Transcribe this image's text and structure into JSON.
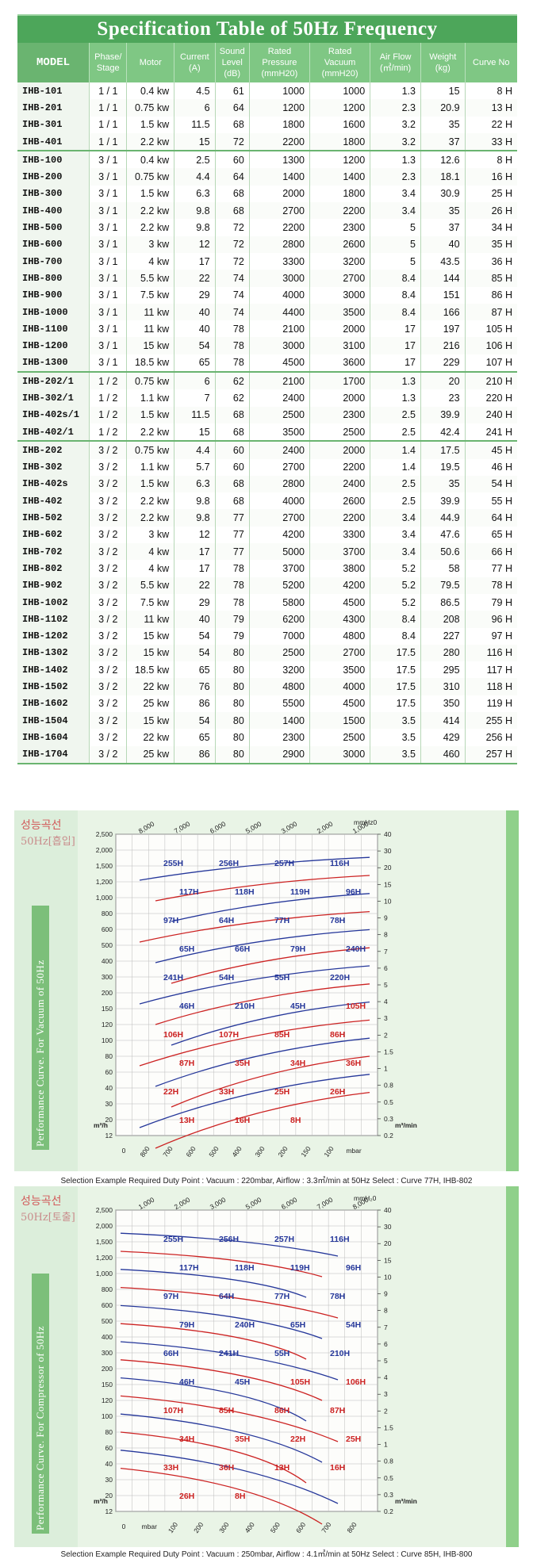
{
  "spec": {
    "title": "Specification Table of 50Hz Frequency",
    "headers": [
      "MODEL",
      "Phase/ Stage",
      "Motor",
      "Current (A)",
      "Sound Level (dB)",
      "Rated Pressure (mmH20)",
      "Rated Vacuum (mmH20)",
      "Air Flow (㎥/min)",
      "Weight (kg)",
      "Curve No"
    ],
    "rows": [
      [
        "IHB-101",
        "1 / 1",
        "0.4 kw",
        "4.5",
        "61",
        "1000",
        "1000",
        "1.3",
        "15",
        "8 H"
      ],
      [
        "IHB-201",
        "1 / 1",
        "0.75 kw",
        "6",
        "64",
        "1200",
        "1200",
        "2.3",
        "20.9",
        "13 H"
      ],
      [
        "IHB-301",
        "1 / 1",
        "1.5 kw",
        "11.5",
        "68",
        "1800",
        "1600",
        "3.2",
        "35",
        "22 H"
      ],
      [
        "IHB-401",
        "1 / 1",
        "2.2 kw",
        "15",
        "72",
        "2200",
        "1800",
        "3.2",
        "37",
        "33 H"
      ],
      [
        "IHB-100",
        "3 / 1",
        "0.4 kw",
        "2.5",
        "60",
        "1300",
        "1200",
        "1.3",
        "12.6",
        "8 H"
      ],
      [
        "IHB-200",
        "3 / 1",
        "0.75 kw",
        "4.4",
        "64",
        "1400",
        "1400",
        "2.3",
        "18.1",
        "16 H"
      ],
      [
        "IHB-300",
        "3 / 1",
        "1.5 kw",
        "6.3",
        "68",
        "2000",
        "1800",
        "3.4",
        "30.9",
        "25 H"
      ],
      [
        "IHB-400",
        "3 / 1",
        "2.2 kw",
        "9.8",
        "68",
        "2700",
        "2200",
        "3.4",
        "35",
        "26 H"
      ],
      [
        "IHB-500",
        "3 / 1",
        "2.2 kw",
        "9.8",
        "72",
        "2200",
        "2300",
        "5",
        "37",
        "34 H"
      ],
      [
        "IHB-600",
        "3 / 1",
        "3 kw",
        "12",
        "72",
        "2800",
        "2600",
        "5",
        "40",
        "35 H"
      ],
      [
        "IHB-700",
        "3 / 1",
        "4 kw",
        "17",
        "72",
        "3300",
        "3200",
        "5",
        "43.5",
        "36 H"
      ],
      [
        "IHB-800",
        "3 / 1",
        "5.5 kw",
        "22",
        "74",
        "3000",
        "2700",
        "8.4",
        "144",
        "85 H"
      ],
      [
        "IHB-900",
        "3 / 1",
        "7.5 kw",
        "29",
        "74",
        "4000",
        "3000",
        "8.4",
        "151",
        "86 H"
      ],
      [
        "IHB-1000",
        "3 / 1",
        "11 kw",
        "40",
        "74",
        "4400",
        "3500",
        "8.4",
        "166",
        "87 H"
      ],
      [
        "IHB-1100",
        "3 / 1",
        "11 kw",
        "40",
        "78",
        "2100",
        "2000",
        "17",
        "197",
        "105 H"
      ],
      [
        "IHB-1200",
        "3 / 1",
        "15 kw",
        "54",
        "78",
        "3000",
        "3100",
        "17",
        "216",
        "106 H"
      ],
      [
        "IHB-1300",
        "3 / 1",
        "18.5 kw",
        "65",
        "78",
        "4500",
        "3600",
        "17",
        "229",
        "107 H"
      ],
      [
        "IHB-202/1",
        "1 / 2",
        "0.75 kw",
        "6",
        "62",
        "2100",
        "1700",
        "1.3",
        "20",
        "210 H"
      ],
      [
        "IHB-302/1",
        "1 / 2",
        "1.1 kw",
        "7",
        "62",
        "2400",
        "2000",
        "1.3",
        "23",
        "220 H"
      ],
      [
        "IHB-402s/1",
        "1 / 2",
        "1.5 kw",
        "11.5",
        "68",
        "2500",
        "2300",
        "2.5",
        "39.9",
        "240 H"
      ],
      [
        "IHB-402/1",
        "1 / 2",
        "2.2 kw",
        "15",
        "68",
        "3500",
        "2500",
        "2.5",
        "42.4",
        "241 H"
      ],
      [
        "IHB-202",
        "3 / 2",
        "0.75 kw",
        "4.4",
        "60",
        "2400",
        "2000",
        "1.4",
        "17.5",
        "45 H"
      ],
      [
        "IHB-302",
        "3 / 2",
        "1.1 kw",
        "5.7",
        "60",
        "2700",
        "2200",
        "1.4",
        "19.5",
        "46 H"
      ],
      [
        "IHB-402s",
        "3 / 2",
        "1.5 kw",
        "6.3",
        "68",
        "2800",
        "2400",
        "2.5",
        "35",
        "54 H"
      ],
      [
        "IHB-402",
        "3 / 2",
        "2.2 kw",
        "9.8",
        "68",
        "4000",
        "2600",
        "2.5",
        "39.9",
        "55 H"
      ],
      [
        "IHB-502",
        "3 / 2",
        "2.2 kw",
        "9.8",
        "77",
        "2700",
        "2200",
        "3.4",
        "44.9",
        "64 H"
      ],
      [
        "IHB-602",
        "3 / 2",
        "3 kw",
        "12",
        "77",
        "4200",
        "3300",
        "3.4",
        "47.6",
        "65 H"
      ],
      [
        "IHB-702",
        "3 / 2",
        "4 kw",
        "17",
        "77",
        "5000",
        "3700",
        "3.4",
        "50.6",
        "66 H"
      ],
      [
        "IHB-802",
        "3 / 2",
        "4 kw",
        "17",
        "78",
        "3700",
        "3800",
        "5.2",
        "58",
        "77 H"
      ],
      [
        "IHB-902",
        "3 / 2",
        "5.5 kw",
        "22",
        "78",
        "5200",
        "4200",
        "5.2",
        "79.5",
        "78 H"
      ],
      [
        "IHB-1002",
        "3 / 2",
        "7.5 kw",
        "29",
        "78",
        "5800",
        "4500",
        "5.2",
        "86.5",
        "79 H"
      ],
      [
        "IHB-1102",
        "3 / 2",
        "11 kw",
        "40",
        "79",
        "6200",
        "4300",
        "8.4",
        "208",
        "96 H"
      ],
      [
        "IHB-1202",
        "3 / 2",
        "15 kw",
        "54",
        "79",
        "7000",
        "4800",
        "8.4",
        "227",
        "97 H"
      ],
      [
        "IHB-1302",
        "3 / 2",
        "15 kw",
        "54",
        "80",
        "2500",
        "2700",
        "17.5",
        "280",
        "116 H"
      ],
      [
        "IHB-1402",
        "3 / 2",
        "18.5 kw",
        "65",
        "80",
        "3200",
        "3500",
        "17.5",
        "295",
        "117 H"
      ],
      [
        "IHB-1502",
        "3 / 2",
        "22 kw",
        "76",
        "80",
        "4800",
        "4000",
        "17.5",
        "310",
        "118 H"
      ],
      [
        "IHB-1602",
        "3 / 2",
        "25 kw",
        "86",
        "80",
        "5500",
        "4500",
        "17.5",
        "350",
        "119 H"
      ],
      [
        "IHB-1504",
        "3 / 2",
        "15 kw",
        "54",
        "80",
        "1400",
        "1500",
        "3.5",
        "414",
        "255 H"
      ],
      [
        "IHB-1604",
        "3 / 2",
        "22 kw",
        "65",
        "80",
        "2300",
        "2500",
        "3.5",
        "429",
        "256 H"
      ],
      [
        "IHB-1704",
        "3 / 2",
        "25 kw",
        "86",
        "80",
        "2900",
        "3000",
        "3.5",
        "460",
        "257 H"
      ]
    ]
  },
  "vacuum_panel": {
    "badge": "성능곡선",
    "badge_sub": "50Hz[흡입]",
    "side_title": "Performance Curve. For Vacuum of 50Hz",
    "unit_top": "mmHz0",
    "unit_left": "m³/h",
    "unit_right": "m³/min",
    "unit_bottom": "mbar",
    "caption": "Selection Example Required Duty Point : Vacuum : 220mbar, Airflow : 3.3㎥/min at 50Hz Select : Curve 77H, IHB-802"
  },
  "compressor_panel": {
    "badge": "성능곡선",
    "badge_sub": "50Hz[토출]",
    "side_title": "Performance Curve. For Compressor of 50Hz",
    "unit_top": "mmH₂0",
    "unit_left": "m³/h",
    "unit_right": "m³/min",
    "unit_bottom": "mbar",
    "caption": "Selection Example Required Duty Point : Vacuum : 250mbar, Airflow : 4.1㎥/min at 50Hz Select : Curve 85H, IHB-800"
  },
  "chart_data": [
    {
      "type": "line",
      "title": "Performance Curve. For Vacuum of 50Hz",
      "left_axis_ticks": [
        "2,500",
        "2,000",
        "1,500",
        "1,200",
        "1,000",
        "800",
        "600",
        "500",
        "400",
        "300",
        "200",
        "150",
        "120",
        "100",
        "80",
        "60",
        "40",
        "30",
        "20",
        "12"
      ],
      "right_axis_ticks": [
        "40",
        "30",
        "20",
        "15",
        "10",
        "9",
        "8",
        "7",
        "6",
        "5",
        "4",
        "3",
        "2",
        "1.5",
        "1",
        "0.8",
        "0.5",
        "0.3",
        "0.2"
      ],
      "top_axis_ticks": [
        "8,000",
        "7,000",
        "6,000",
        "5,000",
        "3,000",
        "2,000",
        "1,000"
      ],
      "bottom_axis_ticks": [
        "0",
        "800",
        "700",
        "600",
        "500",
        "400",
        "300",
        "200",
        "150",
        "100",
        "mbar"
      ],
      "curve_labels_blue": [
        "255H",
        "256H",
        "257H",
        "116H",
        "117H",
        "118H",
        "119H",
        "96H",
        "97H",
        "64H",
        "77H",
        "78H",
        "65H",
        "66H",
        "79H",
        "240H",
        "241H",
        "54H",
        "55H",
        "220H",
        "46H",
        "210H",
        "45H"
      ],
      "curve_labels_red": [
        "105H",
        "106H",
        "107H",
        "85H",
        "86H",
        "87H",
        "35H",
        "34H",
        "36H",
        "22H",
        "33H",
        "25H",
        "26H",
        "13H",
        "16H",
        "8H"
      ]
    },
    {
      "type": "line",
      "title": "Performance Curve. For Compressor of 50Hz",
      "left_axis_ticks": [
        "2,500",
        "2,000",
        "1,500",
        "1,200",
        "1,000",
        "800",
        "600",
        "500",
        "400",
        "300",
        "200",
        "150",
        "120",
        "100",
        "80",
        "60",
        "40",
        "30",
        "20",
        "12"
      ],
      "right_axis_ticks": [
        "40",
        "30",
        "20",
        "15",
        "10",
        "9",
        "8",
        "7",
        "6",
        "5",
        "4",
        "3",
        "2",
        "1.5",
        "1",
        "0.8",
        "0.5",
        "0.3",
        "0.2"
      ],
      "top_axis_ticks": [
        "1,000",
        "2,000",
        "3,000",
        "5,000",
        "6,000",
        "7,000",
        "8,000"
      ],
      "bottom_axis_ticks": [
        "0",
        "mbar",
        "100",
        "200",
        "300",
        "400",
        "500",
        "600",
        "700",
        "800"
      ],
      "curve_labels_blue": [
        "255H",
        "256H",
        "257H",
        "116H",
        "117H",
        "118H",
        "119H",
        "96H",
        "97H",
        "64H",
        "77H",
        "78H",
        "79H",
        "240H",
        "65H",
        "54H",
        "66H",
        "241H",
        "55H",
        "210H",
        "46H",
        "45H"
      ],
      "curve_labels_red": [
        "105H",
        "106H",
        "107H",
        "85H",
        "86H",
        "87H",
        "34H",
        "35H",
        "22H",
        "25H",
        "33H",
        "36H",
        "13H",
        "16H",
        "26H",
        "8H"
      ]
    }
  ]
}
